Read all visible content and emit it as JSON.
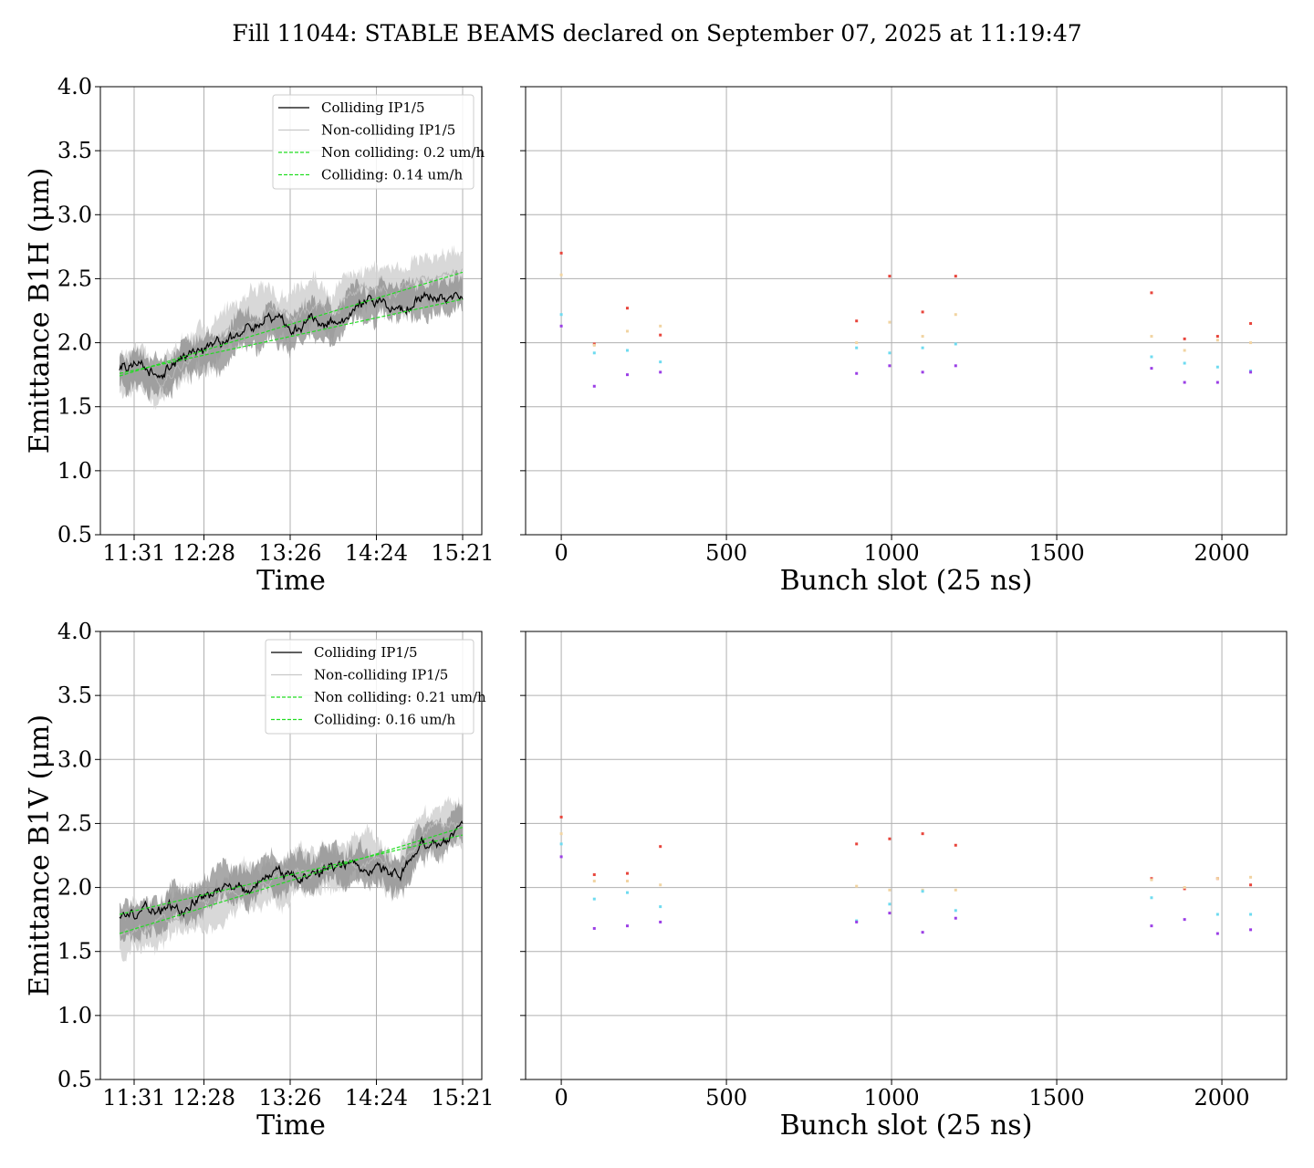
{
  "title": "Fill 11044: STABLE BEAMS declared on September 07, 2025 at 11:19:47",
  "colors": {
    "colliding": "#000000",
    "noncolliding": "#c8c8c8",
    "band_dark": "#8c8c8c",
    "band_light": "#d4d4d4",
    "fit": "#22dd22",
    "grid": "#b0b0b0"
  },
  "chart_data": [
    {
      "id": "b1h_time",
      "type": "line",
      "xlabel": "Time",
      "ylabel": "Emittance B1H (μm)",
      "ylim": [
        0.5,
        4.0
      ],
      "yticks": [
        "0.5",
        "1.0",
        "1.5",
        "2.0",
        "2.5",
        "3.0",
        "3.5",
        "4.0"
      ],
      "xticks": [
        "11:31",
        "12:28",
        "13:26",
        "14:24",
        "15:21"
      ],
      "grid": true,
      "legend_position": "upper-right",
      "series": [
        {
          "name": "Colliding IP1/5",
          "values": [
            1.8,
            1.83,
            1.76,
            1.88,
            1.93,
            2.02,
            2.08,
            2.16,
            2.1,
            2.2,
            2.17,
            2.26,
            2.33,
            2.28,
            2.34,
            2.36,
            2.38
          ]
        },
        {
          "name": "Non-colliding IP1/5",
          "values": [
            1.78,
            1.8,
            1.7,
            1.85,
            1.97,
            2.1,
            2.15,
            2.25,
            2.2,
            2.3,
            2.23,
            2.4,
            2.42,
            2.38,
            2.46,
            2.5,
            2.52
          ]
        },
        {
          "name": "Non colliding: 0.2 um/h",
          "fit": [
            1.74,
            2.55
          ]
        },
        {
          "name": "Colliding: 0.14 um/h",
          "fit": [
            1.76,
            2.34
          ]
        }
      ]
    },
    {
      "id": "b1h_bunch",
      "type": "scatter",
      "xlabel": "Bunch slot (25 ns)",
      "xlim": [
        -108,
        2196
      ],
      "xticks": [
        "0",
        "500",
        "1000",
        "1500",
        "2000"
      ],
      "ylim": [
        0.5,
        4.0
      ],
      "grid": true,
      "points": [
        {
          "x": 0,
          "y": 2.7,
          "c": "#e8453c"
        },
        {
          "x": 0,
          "y": 2.53,
          "c": "#f1d4a2"
        },
        {
          "x": 0,
          "y": 2.22,
          "c": "#6edbf0"
        },
        {
          "x": 0,
          "y": 2.13,
          "c": "#9b3fe6"
        },
        {
          "x": 100,
          "y": 1.99,
          "c": "#e8453c"
        },
        {
          "x": 100,
          "y": 1.98,
          "c": "#f1d4a2"
        },
        {
          "x": 100,
          "y": 1.92,
          "c": "#6edbf0"
        },
        {
          "x": 100,
          "y": 1.66,
          "c": "#9b3fe6"
        },
        {
          "x": 200,
          "y": 2.27,
          "c": "#e8453c"
        },
        {
          "x": 200,
          "y": 2.09,
          "c": "#f1d4a2"
        },
        {
          "x": 200,
          "y": 1.94,
          "c": "#6edbf0"
        },
        {
          "x": 200,
          "y": 1.75,
          "c": "#9b3fe6"
        },
        {
          "x": 300,
          "y": 2.06,
          "c": "#e8453c"
        },
        {
          "x": 300,
          "y": 2.13,
          "c": "#f1d4a2"
        },
        {
          "x": 300,
          "y": 1.85,
          "c": "#6edbf0"
        },
        {
          "x": 300,
          "y": 1.77,
          "c": "#9b3fe6"
        },
        {
          "x": 894,
          "y": 2.17,
          "c": "#e8453c"
        },
        {
          "x": 894,
          "y": 2.0,
          "c": "#f1d4a2"
        },
        {
          "x": 894,
          "y": 1.96,
          "c": "#6edbf0"
        },
        {
          "x": 894,
          "y": 1.76,
          "c": "#9b3fe6"
        },
        {
          "x": 994,
          "y": 2.52,
          "c": "#e8453c"
        },
        {
          "x": 994,
          "y": 2.16,
          "c": "#f1d4a2"
        },
        {
          "x": 994,
          "y": 1.92,
          "c": "#6edbf0"
        },
        {
          "x": 994,
          "y": 1.82,
          "c": "#9b3fe6"
        },
        {
          "x": 1094,
          "y": 2.24,
          "c": "#e8453c"
        },
        {
          "x": 1094,
          "y": 2.05,
          "c": "#f1d4a2"
        },
        {
          "x": 1094,
          "y": 1.96,
          "c": "#6edbf0"
        },
        {
          "x": 1094,
          "y": 1.77,
          "c": "#9b3fe6"
        },
        {
          "x": 1194,
          "y": 2.52,
          "c": "#e8453c"
        },
        {
          "x": 1194,
          "y": 2.22,
          "c": "#f1d4a2"
        },
        {
          "x": 1194,
          "y": 1.99,
          "c": "#6edbf0"
        },
        {
          "x": 1194,
          "y": 1.82,
          "c": "#9b3fe6"
        },
        {
          "x": 1787,
          "y": 2.39,
          "c": "#e8453c"
        },
        {
          "x": 1787,
          "y": 2.05,
          "c": "#f1d4a2"
        },
        {
          "x": 1787,
          "y": 1.89,
          "c": "#6edbf0"
        },
        {
          "x": 1787,
          "y": 1.8,
          "c": "#9b3fe6"
        },
        {
          "x": 1887,
          "y": 2.03,
          "c": "#e8453c"
        },
        {
          "x": 1887,
          "y": 1.94,
          "c": "#f1d4a2"
        },
        {
          "x": 1887,
          "y": 1.84,
          "c": "#6edbf0"
        },
        {
          "x": 1887,
          "y": 1.69,
          "c": "#9b3fe6"
        },
        {
          "x": 1987,
          "y": 2.05,
          "c": "#e8453c"
        },
        {
          "x": 1987,
          "y": 2.02,
          "c": "#f1d4a2"
        },
        {
          "x": 1987,
          "y": 1.81,
          "c": "#6edbf0"
        },
        {
          "x": 1987,
          "y": 1.69,
          "c": "#9b3fe6"
        },
        {
          "x": 2087,
          "y": 2.15,
          "c": "#e8453c"
        },
        {
          "x": 2087,
          "y": 2.0,
          "c": "#f1d4a2"
        },
        {
          "x": 2087,
          "y": 1.78,
          "c": "#6edbf0"
        },
        {
          "x": 2087,
          "y": 1.77,
          "c": "#9b3fe6"
        }
      ]
    },
    {
      "id": "b1v_time",
      "type": "line",
      "xlabel": "Time",
      "ylabel": "Emittance B1V (μm)",
      "ylim": [
        0.5,
        4.0
      ],
      "yticks": [
        "0.5",
        "1.0",
        "1.5",
        "2.0",
        "2.5",
        "3.0",
        "3.5",
        "4.0"
      ],
      "xticks": [
        "11:31",
        "12:28",
        "13:26",
        "14:24",
        "15:21"
      ],
      "grid": true,
      "legend_position": "upper-right",
      "series": [
        {
          "name": "Colliding IP1/5",
          "values": [
            1.78,
            1.82,
            1.85,
            1.86,
            1.95,
            2.04,
            1.98,
            2.1,
            2.12,
            2.1,
            2.16,
            2.18,
            2.2,
            2.1,
            2.32,
            2.4,
            2.44
          ]
        },
        {
          "name": "Non-colliding IP1/5",
          "values": [
            1.66,
            1.7,
            1.73,
            1.8,
            1.88,
            1.95,
            2.0,
            2.05,
            2.1,
            2.12,
            2.14,
            2.2,
            2.22,
            2.08,
            2.4,
            2.52,
            2.5
          ]
        },
        {
          "name": "Non colliding: 0.21 um/h",
          "fit": [
            1.64,
            2.47
          ]
        },
        {
          "name": "Colliding: 0.16 um/h",
          "fit": [
            1.79,
            2.41
          ]
        }
      ]
    },
    {
      "id": "b1v_bunch",
      "type": "scatter",
      "xlabel": "Bunch slot (25 ns)",
      "xlim": [
        -108,
        2196
      ],
      "xticks": [
        "0",
        "500",
        "1000",
        "1500",
        "2000"
      ],
      "ylim": [
        0.5,
        4.0
      ],
      "grid": true,
      "points": [
        {
          "x": 0,
          "y": 2.55,
          "c": "#e8453c"
        },
        {
          "x": 0,
          "y": 2.42,
          "c": "#f1d4a2"
        },
        {
          "x": 0,
          "y": 2.34,
          "c": "#6edbf0"
        },
        {
          "x": 0,
          "y": 2.24,
          "c": "#9b3fe6"
        },
        {
          "x": 100,
          "y": 2.1,
          "c": "#e8453c"
        },
        {
          "x": 100,
          "y": 2.05,
          "c": "#f1d4a2"
        },
        {
          "x": 100,
          "y": 1.91,
          "c": "#6edbf0"
        },
        {
          "x": 100,
          "y": 1.68,
          "c": "#9b3fe6"
        },
        {
          "x": 200,
          "y": 2.11,
          "c": "#e8453c"
        },
        {
          "x": 200,
          "y": 2.05,
          "c": "#f1d4a2"
        },
        {
          "x": 200,
          "y": 1.96,
          "c": "#6edbf0"
        },
        {
          "x": 200,
          "y": 1.7,
          "c": "#9b3fe6"
        },
        {
          "x": 300,
          "y": 2.32,
          "c": "#e8453c"
        },
        {
          "x": 300,
          "y": 2.02,
          "c": "#f1d4a2"
        },
        {
          "x": 300,
          "y": 1.85,
          "c": "#6edbf0"
        },
        {
          "x": 300,
          "y": 1.73,
          "c": "#9b3fe6"
        },
        {
          "x": 894,
          "y": 2.34,
          "c": "#e8453c"
        },
        {
          "x": 894,
          "y": 2.01,
          "c": "#f1d4a2"
        },
        {
          "x": 894,
          "y": 1.74,
          "c": "#6edbf0"
        },
        {
          "x": 894,
          "y": 1.73,
          "c": "#9b3fe6"
        },
        {
          "x": 994,
          "y": 2.38,
          "c": "#e8453c"
        },
        {
          "x": 994,
          "y": 1.98,
          "c": "#f1d4a2"
        },
        {
          "x": 994,
          "y": 1.87,
          "c": "#6edbf0"
        },
        {
          "x": 994,
          "y": 1.8,
          "c": "#9b3fe6"
        },
        {
          "x": 1094,
          "y": 2.42,
          "c": "#e8453c"
        },
        {
          "x": 1094,
          "y": 1.98,
          "c": "#f1d4a2"
        },
        {
          "x": 1094,
          "y": 1.97,
          "c": "#6edbf0"
        },
        {
          "x": 1094,
          "y": 1.65,
          "c": "#9b3fe6"
        },
        {
          "x": 1194,
          "y": 2.33,
          "c": "#e8453c"
        },
        {
          "x": 1194,
          "y": 1.98,
          "c": "#f1d4a2"
        },
        {
          "x": 1194,
          "y": 1.82,
          "c": "#6edbf0"
        },
        {
          "x": 1194,
          "y": 1.76,
          "c": "#9b3fe6"
        },
        {
          "x": 1787,
          "y": 2.07,
          "c": "#e8453c"
        },
        {
          "x": 1787,
          "y": 2.06,
          "c": "#f1d4a2"
        },
        {
          "x": 1787,
          "y": 1.92,
          "c": "#6edbf0"
        },
        {
          "x": 1787,
          "y": 1.7,
          "c": "#9b3fe6"
        },
        {
          "x": 1887,
          "y": 1.99,
          "c": "#e8453c"
        },
        {
          "x": 1887,
          "y": 2.0,
          "c": "#f1d4a2"
        },
        {
          "x": 1887,
          "y": 1.75,
          "c": "#9b3fe6"
        },
        {
          "x": 1987,
          "y": 2.07,
          "c": "#e8453c"
        },
        {
          "x": 1987,
          "y": 2.07,
          "c": "#f1d4a2"
        },
        {
          "x": 1987,
          "y": 1.79,
          "c": "#6edbf0"
        },
        {
          "x": 1987,
          "y": 1.64,
          "c": "#9b3fe6"
        },
        {
          "x": 2087,
          "y": 2.02,
          "c": "#e8453c"
        },
        {
          "x": 2087,
          "y": 2.08,
          "c": "#f1d4a2"
        },
        {
          "x": 2087,
          "y": 1.79,
          "c": "#6edbf0"
        },
        {
          "x": 2087,
          "y": 1.67,
          "c": "#9b3fe6"
        }
      ]
    }
  ]
}
